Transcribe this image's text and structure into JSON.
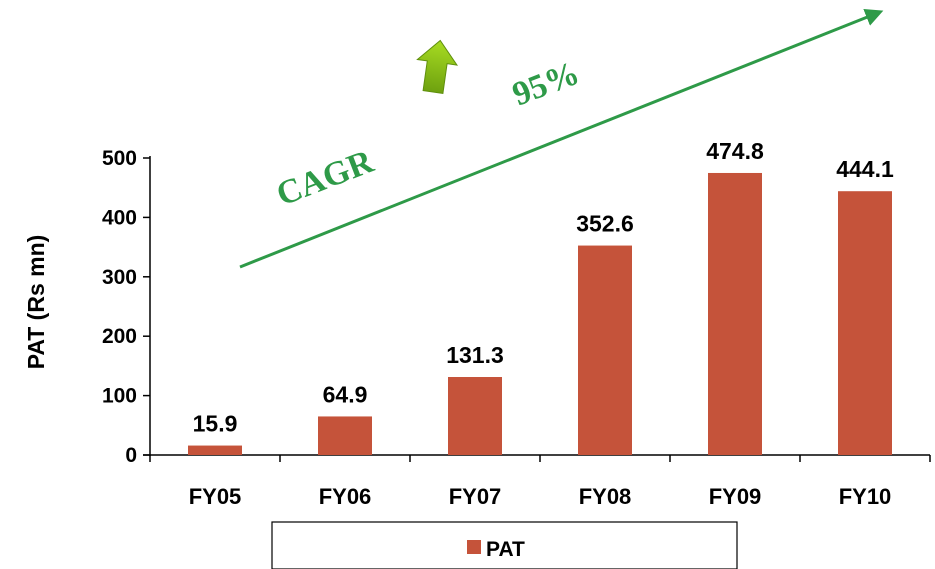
{
  "chart_data": {
    "type": "bar",
    "categories": [
      "FY05",
      "FY06",
      "FY07",
      "FY08",
      "FY09",
      "FY10"
    ],
    "series": [
      {
        "name": "PAT",
        "values": [
          15.9,
          64.9,
          131.3,
          352.6,
          474.8,
          444.1
        ],
        "color": "#C5533A"
      }
    ],
    "data_labels": [
      "15.9",
      "64.9",
      "131.3",
      "352.6",
      "474.8",
      "444.1"
    ],
    "ylabel": "PAT (Rs mn)",
    "xlabel": "",
    "ylim": [
      0,
      500
    ],
    "yticks": [
      0,
      100,
      200,
      300,
      400,
      500
    ],
    "grid": false,
    "legend": {
      "position": "bottom",
      "entries": [
        "PAT"
      ]
    },
    "annotations": {
      "cagr_label": "CAGR",
      "cagr_value": "95%",
      "trend_arrow_color": "#2E9A48",
      "up_arrow_color": "#8CC21B"
    }
  }
}
